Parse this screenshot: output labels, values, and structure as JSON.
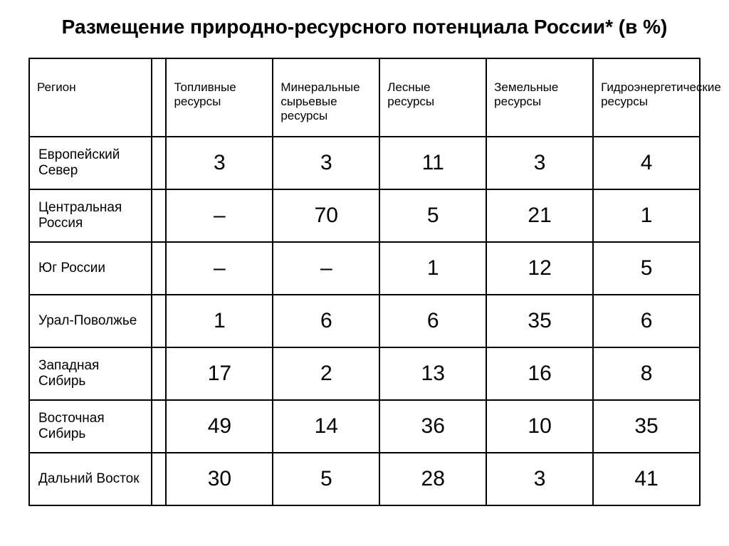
{
  "title": "Размещение природно-ресурсного потенциала России* (в %)",
  "table": {
    "columns": [
      "Регион",
      "Топливные ресурсы",
      "Минеральные сырьевые ресурсы",
      "Лесные ресурсы",
      "Земельные ресурсы",
      "Гидроэнергетические ресурсы"
    ],
    "rows": [
      {
        "region": "Европейский Север",
        "values": [
          "3",
          "3",
          "11",
          "3",
          "4"
        ]
      },
      {
        "region": "Центральная Россия",
        "values": [
          "–",
          "70",
          "5",
          "21",
          "1"
        ]
      },
      {
        "region": "Юг России",
        "values": [
          "–",
          "–",
          "1",
          "12",
          "5"
        ]
      },
      {
        "region": "Урал-Поволжье",
        "values": [
          "1",
          "6",
          "6",
          "35",
          "6"
        ]
      },
      {
        "region": "Западная Сибирь",
        "values": [
          "17",
          "2",
          "13",
          "16",
          "8"
        ]
      },
      {
        "region": "Восточная Сибирь",
        "values": [
          "49",
          "14",
          "36",
          "10",
          "35"
        ]
      },
      {
        "region": "Дальний Восток",
        "values": [
          "30",
          "5",
          "28",
          "3",
          "41"
        ]
      }
    ]
  },
  "styles": {
    "background_color": "#ffffff",
    "border_color": "#000000",
    "text_color": "#000000",
    "title_fontsize": 28,
    "header_fontsize": 17,
    "region_fontsize": 19,
    "value_fontsize": 30
  }
}
